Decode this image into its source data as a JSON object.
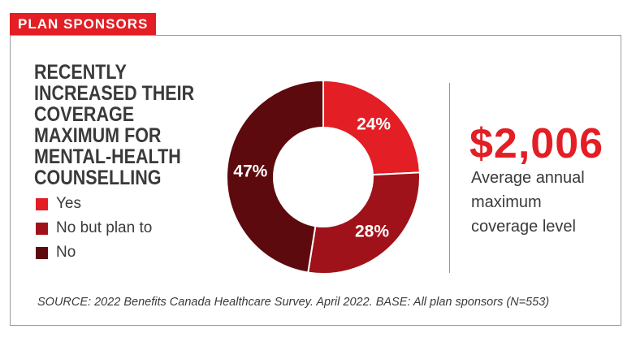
{
  "tag": "PLAN SPONSORS",
  "title": "RECENTLY INCREASED THEIR COVERAGE MAXIMUM FOR MENTAL-HEALTH COUNSELLING",
  "colors": {
    "accent": "#e31e24",
    "yes": "#e31e24",
    "no_but_plan_to": "#a0121a",
    "no": "#5c0a0d"
  },
  "chart_data": {
    "type": "pie",
    "donut": true,
    "title": "RECENTLY INCREASED THEIR COVERAGE MAXIMUM FOR MENTAL-HEALTH COUNSELLING",
    "labels": [
      "Yes",
      "No but plan to",
      "No"
    ],
    "values": [
      24,
      28,
      47
    ],
    "value_labels": [
      "24%",
      "28%",
      "47%"
    ],
    "colors": [
      "#e31e24",
      "#a0121a",
      "#5c0a0d"
    ],
    "legend_position": "left"
  },
  "stat": {
    "value": "$2,006",
    "caption": "Average annual maximum coverage level"
  },
  "source": "SOURCE: 2022 Benefits Canada Healthcare Survey. April 2022. BASE: All plan sponsors (N=553)"
}
